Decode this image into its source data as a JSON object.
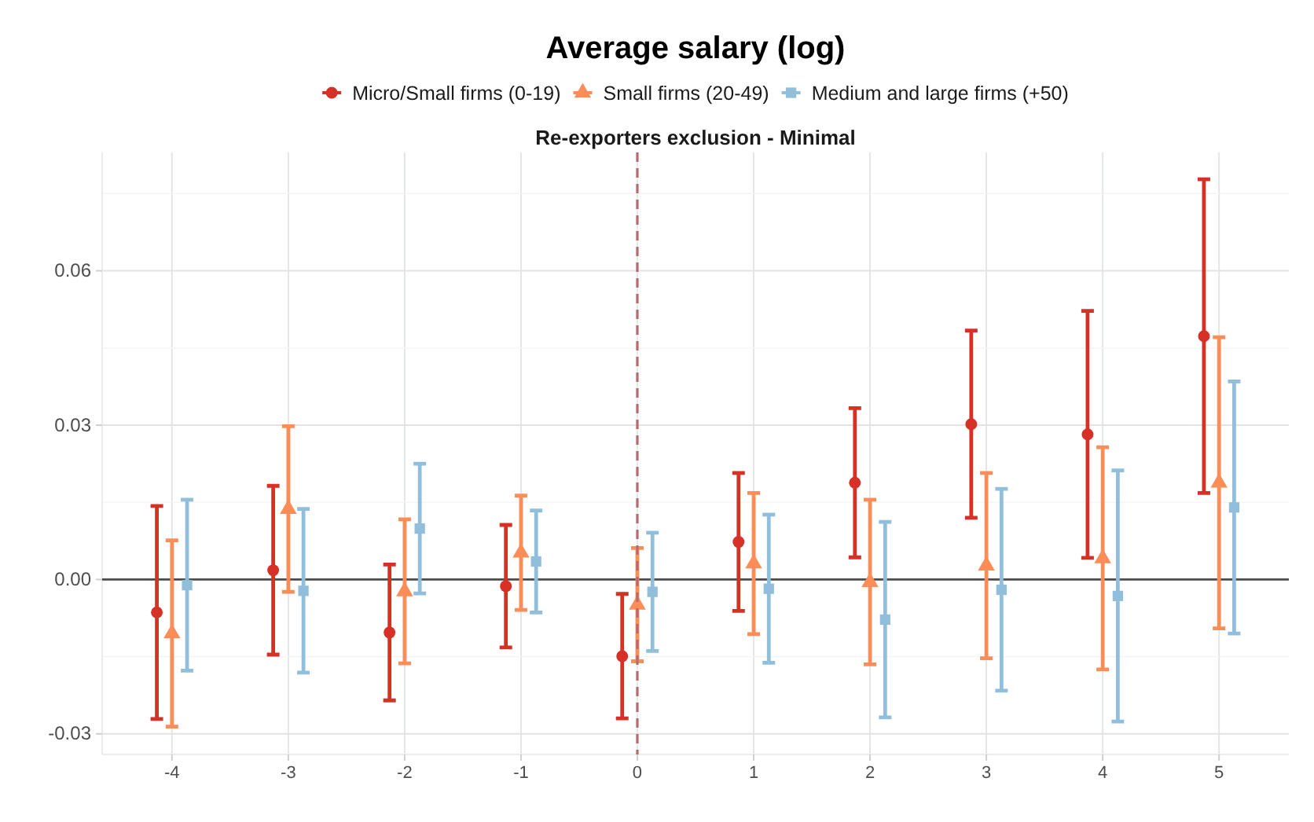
{
  "chart_data": {
    "type": "scatter",
    "title": "Average salary (log)",
    "subtitle": "Re-exporters exclusion - Minimal",
    "x": [
      -4,
      -3,
      -2,
      -1,
      0,
      1,
      2,
      3,
      4,
      5
    ],
    "xlim": [
      -4.6,
      5.6
    ],
    "xticks": [
      -4,
      -3,
      -2,
      -1,
      0,
      1,
      2,
      3,
      4,
      5
    ],
    "ylim": [
      -0.034,
      0.083
    ],
    "yticks": [
      {
        "value": -0.03,
        "label": "-0.03"
      },
      {
        "value": -0.015,
        "label": null
      },
      {
        "value": 0,
        "label": "0.00"
      },
      {
        "value": 0.015,
        "label": null
      },
      {
        "value": 0.03,
        "label": "0.03"
      },
      {
        "value": 0.045,
        "label": null
      },
      {
        "value": 0.06,
        "label": "0.06"
      },
      {
        "value": 0.075,
        "label": null
      }
    ],
    "series": [
      {
        "name": "Micro/Small firms (0-19)",
        "color": "#d73027",
        "marker": "circle",
        "x": [
          -4.13,
          -3.13,
          -2.13,
          -1.13,
          -0.13,
          0.87,
          1.87,
          2.87,
          3.87,
          4.87
        ],
        "values": [
          -0.0064,
          0.0018,
          -0.0103,
          -0.0013,
          -0.0149,
          0.0073,
          0.0188,
          0.0302,
          0.0282,
          0.0473
        ],
        "errors": [
          0.0207,
          0.0164,
          0.0132,
          0.0119,
          0.0121,
          0.0134,
          0.0145,
          0.0182,
          0.024,
          0.0305
        ]
      },
      {
        "name": "Small firms (20-49)",
        "color": "#fc8d59",
        "marker": "triangle",
        "values": [
          -0.0105,
          0.0137,
          -0.0023,
          0.0052,
          -0.0049,
          0.0031,
          -0.0005,
          0.0027,
          0.0041,
          0.0188
        ],
        "errors": [
          0.0181,
          0.0161,
          0.014,
          0.0111,
          0.011,
          0.0137,
          0.016,
          0.018,
          0.0216,
          0.0283
        ]
      },
      {
        "name": "Medium and large firms (+50)",
        "color": "#91bfdb",
        "marker": "square",
        "x": [
          -3.87,
          -2.87,
          -1.87,
          -0.87,
          0.13,
          1.13,
          2.13,
          3.13,
          4.13,
          5.13
        ],
        "values": [
          -0.0011,
          -0.0022,
          0.0099,
          0.0035,
          -0.0024,
          -0.0018,
          -0.0078,
          -0.002,
          -0.0032,
          0.014
        ],
        "errors": [
          0.0166,
          0.0159,
          0.0126,
          0.0099,
          0.0115,
          0.0144,
          0.019,
          0.0196,
          0.0244,
          0.0245
        ]
      }
    ],
    "ref_lines": [
      {
        "axis": "y",
        "value": 0,
        "color": "#4d4d4d"
      },
      {
        "axis": "x",
        "value": 0,
        "color": "#b8696f",
        "line_style": "dashed"
      }
    ],
    "grid": true,
    "legend": "top"
  }
}
